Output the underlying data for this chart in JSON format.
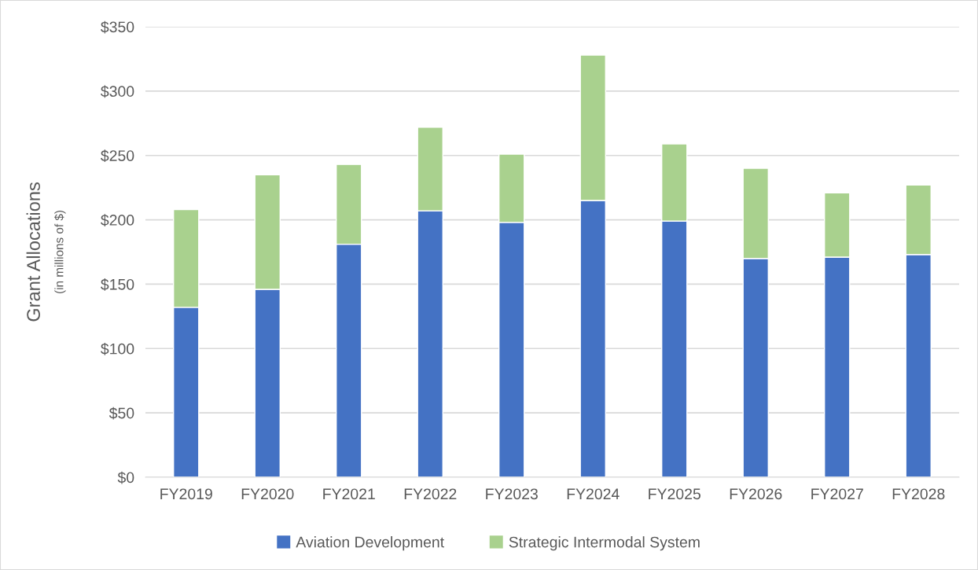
{
  "chart_data": {
    "type": "bar",
    "stacked": true,
    "ylabel": "Grant Allocations",
    "annotations": [
      "(in millions of $)"
    ],
    "categories": [
      "FY2019",
      "FY2020",
      "FY2021",
      "FY2022",
      "FY2023",
      "FY2024",
      "FY2025",
      "FY2026",
      "FY2027",
      "FY2028"
    ],
    "series": [
      {
        "name": "Aviation Development",
        "color": "#4472c4",
        "values": [
          132,
          146,
          181,
          207,
          198,
          215,
          199,
          170,
          171,
          173
        ]
      },
      {
        "name": "Strategic Intermodal System",
        "color": "#a9d18e",
        "values": [
          76,
          89,
          62,
          65,
          53,
          113,
          60,
          70,
          50,
          54
        ]
      }
    ],
    "ylim": [
      0,
      350
    ],
    "yticks": [
      {
        "value": 0,
        "label": "$0"
      },
      {
        "value": 50,
        "label": "$50"
      },
      {
        "value": 100,
        "label": "$100"
      },
      {
        "value": 150,
        "label": "$150"
      },
      {
        "value": 200,
        "label": "$200"
      },
      {
        "value": 250,
        "label": "$250"
      },
      {
        "value": 300,
        "label": "$300"
      },
      {
        "value": 350,
        "label": "$350"
      }
    ],
    "grid": "y",
    "legend": "bottom"
  }
}
